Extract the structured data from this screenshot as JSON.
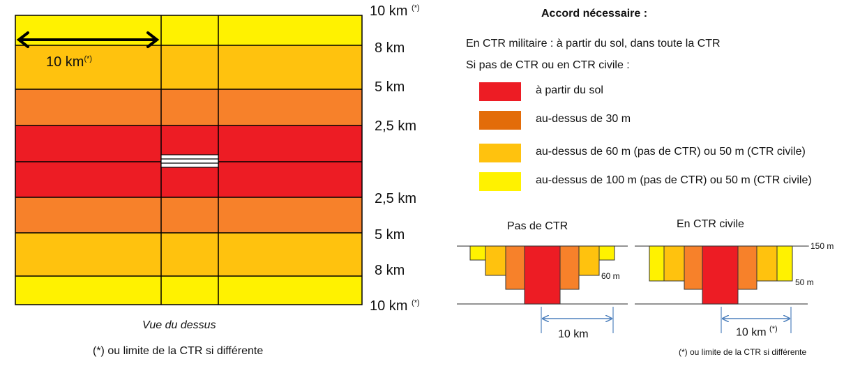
{
  "colors": {
    "yellow": "#FFF200",
    "light_orange": "#FFC20E",
    "orange": "#F7812A",
    "dark_orange": "#E36C09",
    "red": "#ED1C24",
    "arrow_blue": "#4F81BD"
  },
  "top_view": {
    "arrow_label": "10 km",
    "arrow_sup": "(*)",
    "distance_labels": [
      {
        "text": "10 km",
        "sup": "(*)"
      },
      {
        "text": "8 km",
        "sup": ""
      },
      {
        "text": "5 km",
        "sup": ""
      },
      {
        "text": "2,5 km",
        "sup": ""
      },
      {
        "text": "2,5 km",
        "sup": ""
      },
      {
        "text": "5 km",
        "sup": ""
      },
      {
        "text": "8 km",
        "sup": ""
      },
      {
        "text": "10 km",
        "sup": "(*)"
      }
    ],
    "caption": "Vue du dessus",
    "footnote": "(*) ou limite de la CTR si différente"
  },
  "legend": {
    "title": "Accord nécessaire :",
    "line_military": "En CTR militaire : à partir du sol, dans toute la CTR",
    "line_civil": "Si pas de CTR ou en CTR civile :",
    "items": [
      {
        "color": "#ED1C24",
        "label": "à partir du sol"
      },
      {
        "color": "#E36C09",
        "label": "au-dessus de 30 m"
      },
      {
        "color": "#FFC20E",
        "label": "au-dessus de 60 m (pas de CTR) ou 50 m (CTR civile)"
      },
      {
        "color": "#FFF200",
        "label": "au-dessus de 100 m (pas de CTR) ou 50 m (CTR civile)"
      }
    ]
  },
  "profiles": {
    "no_ctr_title": "Pas de CTR",
    "civil_ctr_title": "En CTR civile",
    "label_150": "150 m",
    "label_60": "60 m",
    "label_50": "50 m",
    "no_ctr_distance": "10 km",
    "civil_ctr_distance": "10 km",
    "civil_ctr_distance_sup": "(*)",
    "footnote": "(*) ou limite de la CTR si différente"
  }
}
